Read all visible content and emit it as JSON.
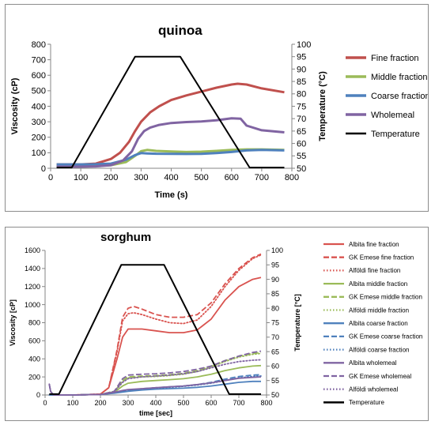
{
  "chart_data": [
    {
      "type": "line",
      "title": "quinoa",
      "xlabel": "Time (s)",
      "ylabel": "Viscosity (cP)",
      "y2label": "Temperature (°C)",
      "xlim": [
        0,
        800
      ],
      "ylim": [
        0,
        800
      ],
      "y2lim": [
        50,
        100
      ],
      "xticks": [
        0,
        100,
        200,
        300,
        400,
        500,
        600,
        700,
        800
      ],
      "yticks": [
        0,
        100,
        200,
        300,
        400,
        500,
        600,
        700,
        800
      ],
      "y2ticks": [
        50,
        55,
        60,
        65,
        70,
        75,
        80,
        85,
        90,
        95,
        100
      ],
      "legend_position": "right",
      "series": [
        {
          "name": "Fine fraction",
          "axis": "left",
          "color": "#c0504d",
          "dash": "solid",
          "width": 3,
          "x": [
            20,
            60,
            100,
            150,
            200,
            230,
            260,
            280,
            300,
            330,
            360,
            400,
            450,
            500,
            550,
            600,
            620,
            650,
            700,
            775
          ],
          "y": [
            25,
            25,
            25,
            30,
            60,
            100,
            170,
            240,
            300,
            360,
            400,
            440,
            470,
            495,
            520,
            540,
            545,
            540,
            515,
            490
          ]
        },
        {
          "name": "Middle fraction",
          "axis": "left",
          "color": "#9bbb59",
          "dash": "solid",
          "width": 3,
          "x": [
            20,
            100,
            150,
            200,
            250,
            280,
            300,
            320,
            350,
            400,
            450,
            500,
            550,
            600,
            650,
            700,
            775
          ],
          "y": [
            10,
            10,
            15,
            20,
            40,
            80,
            110,
            118,
            112,
            108,
            105,
            107,
            112,
            118,
            122,
            122,
            118
          ]
        },
        {
          "name": "Coarse fraction",
          "axis": "left",
          "color": "#4f81bd",
          "dash": "solid",
          "width": 3,
          "x": [
            20,
            100,
            150,
            200,
            250,
            280,
            300,
            320,
            350,
            400,
            450,
            500,
            550,
            600,
            650,
            700,
            775
          ],
          "y": [
            25,
            25,
            26,
            30,
            55,
            85,
            98,
            96,
            94,
            93,
            92,
            93,
            98,
            105,
            115,
            118,
            115
          ]
        },
        {
          "name": "Wholemeal",
          "axis": "left",
          "color": "#8064a2",
          "dash": "solid",
          "width": 3,
          "x": [
            20,
            100,
            150,
            200,
            240,
            270,
            290,
            310,
            330,
            360,
            400,
            450,
            500,
            550,
            600,
            630,
            650,
            700,
            775
          ],
          "y": [
            10,
            10,
            12,
            20,
            50,
            110,
            190,
            240,
            262,
            280,
            292,
            298,
            302,
            310,
            322,
            320,
            275,
            245,
            232
          ]
        },
        {
          "name": "Temperature",
          "axis": "right",
          "color": "#000000",
          "dash": "solid",
          "width": 2,
          "x": [
            20,
            70,
            280,
            290,
            430,
            660,
            775
          ],
          "y": [
            50.3,
            50.3,
            95,
            95,
            95,
            50.3,
            50.3
          ]
        }
      ]
    },
    {
      "type": "line",
      "title": "sorghum",
      "xlabel": "time [sec]",
      "ylabel": "Viscosity [cP]",
      "y2label": "Temperature [°C]",
      "xlim": [
        0,
        800
      ],
      "ylim": [
        0,
        1600
      ],
      "y2lim": [
        50,
        100
      ],
      "xticks": [
        0,
        100,
        200,
        300,
        400,
        500,
        600,
        700,
        800
      ],
      "yticks": [
        0,
        200,
        400,
        600,
        800,
        1000,
        1200,
        1400,
        1600
      ],
      "y2ticks": [
        50,
        55,
        60,
        65,
        70,
        75,
        80,
        85,
        90,
        95,
        100
      ],
      "legend_position": "right",
      "series": [
        {
          "name": "Albita fine fraction",
          "axis": "left",
          "color": "#d9534f",
          "dash": "solid",
          "width": 1.8,
          "x": [
            15,
            100,
            200,
            230,
            260,
            280,
            300,
            350,
            400,
            450,
            500,
            550,
            600,
            650,
            700,
            750,
            780
          ],
          "y": [
            0,
            0,
            10,
            80,
            400,
            640,
            730,
            730,
            710,
            690,
            690,
            720,
            840,
            1050,
            1200,
            1280,
            1300
          ]
        },
        {
          "name": "GK Emese fine fraction",
          "axis": "left",
          "color": "#d9534f",
          "dash": "dashed",
          "width": 1.8,
          "x": [
            15,
            100,
            200,
            230,
            260,
            280,
            300,
            320,
            350,
            400,
            450,
            500,
            550,
            600,
            650,
            700,
            750,
            780
          ],
          "y": [
            0,
            0,
            10,
            80,
            500,
            860,
            960,
            980,
            950,
            890,
            860,
            860,
            890,
            1020,
            1230,
            1400,
            1520,
            1560
          ]
        },
        {
          "name": "Alföldi fine fraction",
          "axis": "left",
          "color": "#d9534f",
          "dash": "dotted",
          "width": 1.8,
          "x": [
            15,
            100,
            200,
            230,
            260,
            280,
            300,
            320,
            350,
            400,
            450,
            500,
            550,
            600,
            650,
            700,
            750,
            780
          ],
          "y": [
            0,
            0,
            10,
            80,
            480,
            820,
            900,
            910,
            890,
            840,
            800,
            790,
            830,
            980,
            1200,
            1380,
            1510,
            1550
          ]
        },
        {
          "name": "Albita middle fraction",
          "axis": "left",
          "color": "#9bbb59",
          "dash": "solid",
          "width": 1.8,
          "x": [
            15,
            100,
            200,
            250,
            280,
            300,
            350,
            400,
            450,
            500,
            550,
            600,
            650,
            700,
            750,
            780
          ],
          "y": [
            0,
            0,
            5,
            30,
            100,
            130,
            150,
            160,
            170,
            180,
            200,
            230,
            270,
            300,
            320,
            325
          ]
        },
        {
          "name": "GK Emese middle fraction",
          "axis": "left",
          "color": "#9bbb59",
          "dash": "dashed",
          "width": 1.8,
          "x": [
            15,
            100,
            200,
            250,
            280,
            300,
            350,
            400,
            450,
            500,
            550,
            600,
            650,
            700,
            750,
            780
          ],
          "y": [
            0,
            0,
            5,
            40,
            160,
            200,
            210,
            215,
            225,
            240,
            270,
            320,
            380,
            430,
            460,
            470
          ]
        },
        {
          "name": "Alföldi middle fraction",
          "axis": "left",
          "color": "#9bbb59",
          "dash": "dotted",
          "width": 1.8,
          "x": [
            15,
            100,
            200,
            250,
            280,
            300,
            350,
            400,
            450,
            500,
            550,
            600,
            650,
            700,
            750,
            780
          ],
          "y": [
            0,
            0,
            5,
            40,
            150,
            190,
            200,
            205,
            215,
            230,
            260,
            310,
            370,
            420,
            450,
            460
          ]
        },
        {
          "name": "Albita coarse fraction",
          "axis": "left",
          "color": "#4f81bd",
          "dash": "solid",
          "width": 1.8,
          "x": [
            15,
            100,
            200,
            250,
            300,
            350,
            400,
            450,
            500,
            550,
            600,
            650,
            700,
            750,
            780
          ],
          "y": [
            0,
            0,
            5,
            20,
            40,
            55,
            65,
            70,
            75,
            85,
            100,
            120,
            140,
            150,
            150
          ]
        },
        {
          "name": "GK Emese coarse fraction",
          "axis": "left",
          "color": "#4f81bd",
          "dash": "dashed",
          "width": 1.8,
          "x": [
            15,
            100,
            200,
            250,
            300,
            350,
            400,
            450,
            500,
            550,
            600,
            650,
            700,
            750,
            780
          ],
          "y": [
            0,
            0,
            5,
            25,
            50,
            70,
            80,
            90,
            100,
            115,
            140,
            175,
            205,
            220,
            225
          ]
        },
        {
          "name": "Alföldi coarse fraction",
          "axis": "left",
          "color": "#4f81bd",
          "dash": "dotted",
          "width": 1.8,
          "x": [
            15,
            100,
            200,
            250,
            300,
            350,
            400,
            450,
            500,
            550,
            600,
            650,
            700,
            750,
            780
          ],
          "y": [
            0,
            0,
            5,
            25,
            50,
            65,
            75,
            85,
            95,
            110,
            130,
            160,
            190,
            205,
            210
          ]
        },
        {
          "name": "Albita wholemeal",
          "axis": "left",
          "color": "#8064a2",
          "dash": "solid",
          "width": 1.8,
          "x": [
            15,
            20,
            30,
            100,
            200,
            250,
            280,
            300,
            350,
            400,
            450,
            500,
            550,
            600,
            650,
            700,
            750,
            780
          ],
          "y": [
            120,
            40,
            0,
            0,
            5,
            30,
            50,
            60,
            70,
            80,
            90,
            100,
            115,
            135,
            160,
            185,
            195,
            200
          ]
        },
        {
          "name": "GK Emese wholemeal",
          "axis": "left",
          "color": "#8064a2",
          "dash": "dashed",
          "width": 1.8,
          "x": [
            15,
            20,
            30,
            100,
            200,
            250,
            280,
            300,
            350,
            400,
            450,
            500,
            550,
            600,
            650,
            700,
            750,
            780
          ],
          "y": [
            120,
            40,
            0,
            0,
            5,
            40,
            180,
            220,
            230,
            235,
            245,
            260,
            285,
            320,
            380,
            430,
            470,
            485
          ]
        },
        {
          "name": "Alföldi wholemeal",
          "axis": "left",
          "color": "#8064a2",
          "dash": "dotted",
          "width": 1.8,
          "x": [
            15,
            20,
            30,
            100,
            200,
            250,
            280,
            300,
            350,
            400,
            450,
            500,
            550,
            600,
            650,
            700,
            750,
            780
          ],
          "y": [
            120,
            40,
            0,
            0,
            5,
            35,
            140,
            180,
            200,
            210,
            220,
            235,
            260,
            300,
            340,
            370,
            385,
            390
          ]
        },
        {
          "name": "Temperature",
          "axis": "right",
          "color": "#000000",
          "dash": "solid",
          "width": 2,
          "x": [
            15,
            50,
            275,
            285,
            430,
            665,
            780
          ],
          "y": [
            50.3,
            50.3,
            95,
            95,
            95,
            50.3,
            50.3
          ]
        }
      ]
    }
  ]
}
